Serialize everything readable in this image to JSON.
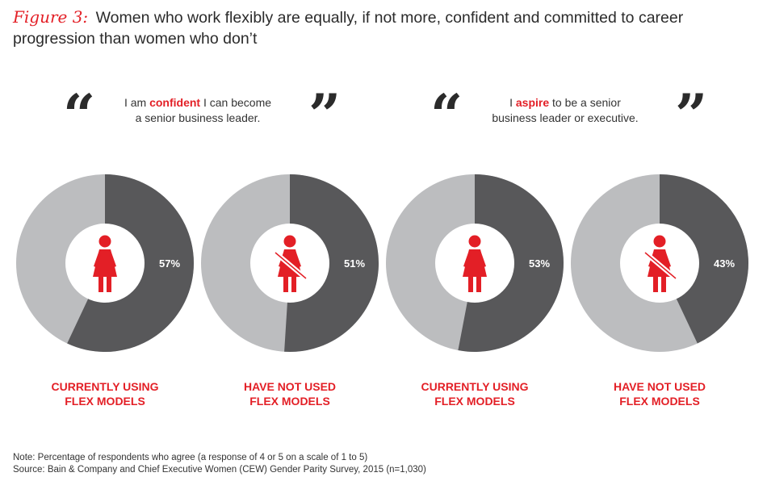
{
  "header": {
    "figure_label": "Figure 3:",
    "title": "Women who work flexibly are equally, if not more, confident and committed to career progression than women who don’t"
  },
  "quotes": [
    {
      "open": "“",
      "close": "”",
      "pre": "I am ",
      "highlight": "confident",
      "line1_post": " I can become",
      "line2": "a senior business leader."
    },
    {
      "open": "“",
      "close": "”",
      "pre": "I ",
      "highlight": "aspire",
      "line1_post": " to be a senior",
      "line2": "business leader or executive."
    }
  ],
  "chart_data": {
    "type": "pie",
    "style": "donut",
    "title": "Women who work flexibly are equally, if not more, confident and committed to career progression than women who don’t",
    "groups": [
      "I am confident I can become a senior business leader.",
      "I aspire to be a senior business leader or executive."
    ],
    "categories": [
      "CURRENTLY USING FLEX MODELS",
      "HAVE NOT USED FLEX MODELS",
      "CURRENTLY USING FLEX MODELS",
      "HAVE NOT USED FLEX MODELS"
    ],
    "values": [
      57,
      51,
      53,
      43
    ],
    "value_labels": [
      "57%",
      "51%",
      "53%",
      "43%"
    ],
    "unit": "%",
    "colors": {
      "agree": "#58585a",
      "rest": "#bcbdbf",
      "accent": "#e31f26",
      "center": "#ffffff"
    }
  },
  "labels": [
    {
      "line1": "CURRENTLY USING",
      "line2": "FLEX MODELS"
    },
    {
      "line1": "HAVE NOT USED",
      "line2": "FLEX MODELS"
    },
    {
      "line1": "CURRENTLY USING",
      "line2": "FLEX MODELS"
    },
    {
      "line1": "HAVE NOT USED",
      "line2": "FLEX MODELS"
    }
  ],
  "icons": [
    "woman-icon",
    "woman-crossed-icon",
    "woman-icon",
    "woman-crossed-icon"
  ],
  "footer": {
    "note": "Note: Percentage of respondents who agree (a response of 4 or 5 on a scale of 1 to 5)",
    "source": "Source: Bain & Company and Chief Executive Women (CEW) Gender Parity Survey, 2015 (n=1,030)"
  }
}
